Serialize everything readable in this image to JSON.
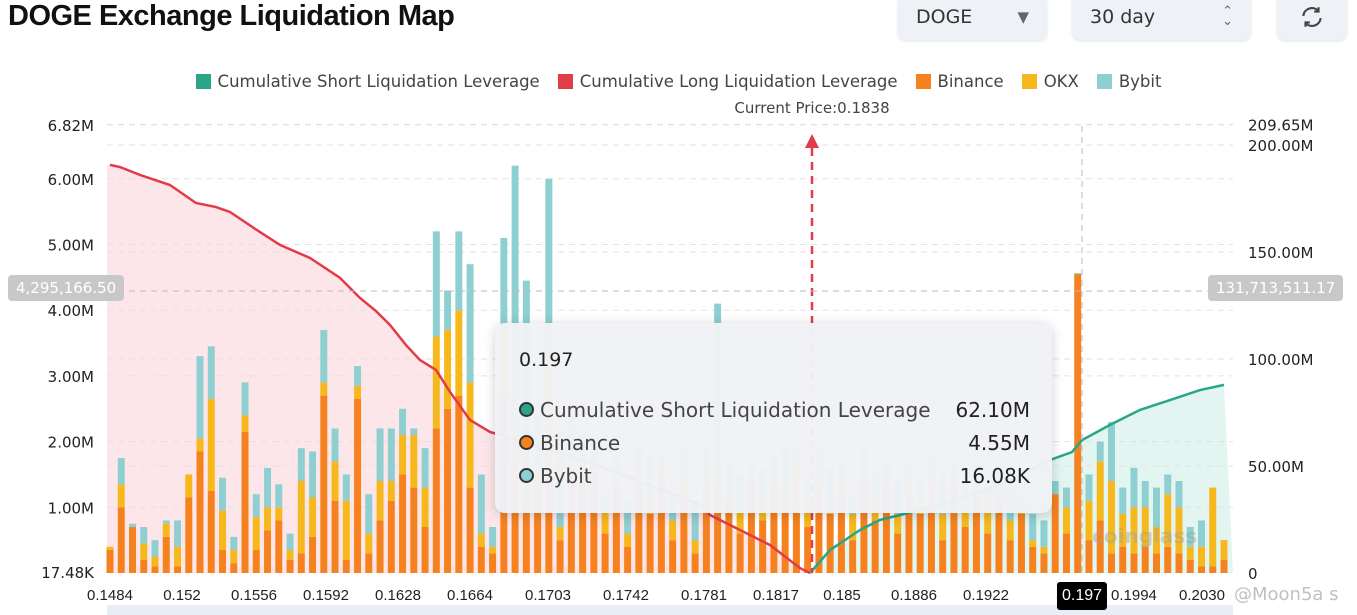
{
  "header": {
    "title": "DOGE Exchange Liquidation Map",
    "coin_select": "DOGE",
    "period_select": "30 day",
    "refresh_icon": "refresh-icon"
  },
  "colors": {
    "short": "#2aa58a",
    "long": "#e23b4a",
    "binance": "#f5821f",
    "okx": "#f7b81d",
    "bybit": "#8ecfd2"
  },
  "legend": [
    {
      "label": "Cumulative Short Liquidation Leverage",
      "color": "#2aa58a"
    },
    {
      "label": "Cumulative Long Liquidation Leverage",
      "color": "#e23b4a"
    },
    {
      "label": "Binance",
      "color": "#f5821f"
    },
    {
      "label": "OKX",
      "color": "#f7b81d"
    },
    {
      "label": "Bybit",
      "color": "#8ecfd2"
    }
  ],
  "current_price_label": "Current Price:0.1838",
  "crosshair": {
    "left_value": "4,295,166.50",
    "right_value": "131,713,511.17",
    "x_value": "0.197"
  },
  "tooltip": {
    "title": "0.197",
    "rows": [
      {
        "name": "Cumulative Short Liquidation Leverage",
        "value": "62.10M",
        "color": "#2aa58a"
      },
      {
        "name": "Binance",
        "value": "4.55M",
        "color": "#f5821f"
      },
      {
        "name": "Bybit",
        "value": "16.08K",
        "color": "#8ecfd2"
      }
    ]
  },
  "watermarks": {
    "logo": "coinglass",
    "credit": "@Moon5a s"
  },
  "chart_data": {
    "type": "bar",
    "stacked": true,
    "x_range": [
      0.1484,
      0.2041
    ],
    "current_price": 0.1838,
    "x_ticks": [
      "0.1484",
      "0.152",
      "0.1556",
      "0.1592",
      "0.1628",
      "0.1664",
      "0.1703",
      "0.1742",
      "0.1781",
      "0.1817",
      "0.185",
      "0.1886",
      "0.1922",
      "0.1994",
      "0.2030"
    ],
    "y_left": {
      "range": [
        0.01748,
        6.82
      ],
      "ticks": [
        {
          "v": 0.01748,
          "label": "17.48K"
        },
        {
          "v": 1,
          "label": "1.00M"
        },
        {
          "v": 2,
          "label": "2.00M"
        },
        {
          "v": 3,
          "label": "3.00M"
        },
        {
          "v": 4,
          "label": "4.00M"
        },
        {
          "v": 5,
          "label": "5.00M"
        },
        {
          "v": 6,
          "label": "6.00M"
        },
        {
          "v": 6.82,
          "label": "6.82M"
        }
      ],
      "unit": "M"
    },
    "y_right": {
      "range": [
        0,
        209.65
      ],
      "ticks": [
        {
          "v": 0,
          "label": "0"
        },
        {
          "v": 50,
          "label": "50.00M"
        },
        {
          "v": 100,
          "label": "100.00M"
        },
        {
          "v": 150,
          "label": "150.00M"
        },
        {
          "v": 200,
          "label": "200.00M"
        },
        {
          "v": 209.65,
          "label": "209.65M"
        }
      ],
      "unit": "M"
    },
    "grid": true,
    "series_order": [
      "Binance",
      "OKX",
      "Bybit"
    ],
    "bars": [
      [
        0.35,
        0.05,
        0
      ],
      [
        1.0,
        0.35,
        0.4
      ],
      [
        0.7,
        0,
        0.05
      ],
      [
        0.2,
        0.25,
        0.25
      ],
      [
        0.1,
        0.15,
        0.25
      ],
      [
        0.55,
        0.2,
        0.05
      ],
      [
        0.1,
        0.3,
        0.4
      ],
      [
        1.15,
        0.35,
        0
      ],
      [
        1.85,
        0.2,
        1.25
      ],
      [
        1.25,
        1.4,
        0.8
      ],
      [
        0.35,
        0.6,
        0.5
      ],
      [
        0.15,
        0.2,
        0.2
      ],
      [
        2.15,
        0.25,
        0.5
      ],
      [
        0.35,
        0.5,
        0.35
      ],
      [
        0.65,
        0.35,
        0.6
      ],
      [
        0.8,
        0.2,
        0.35
      ],
      [
        0.2,
        0.15,
        0.25
      ],
      [
        0.3,
        1.1,
        0.5
      ],
      [
        0.55,
        0.6,
        0.7
      ],
      [
        2.7,
        0.2,
        0.8
      ],
      [
        1.1,
        0.6,
        0.5
      ],
      [
        0.2,
        0.9,
        0.4
      ],
      [
        2.65,
        0.2,
        0.3
      ],
      [
        0.3,
        0.3,
        0.6
      ],
      [
        0.8,
        0.6,
        0.8
      ],
      [
        1.1,
        0.3,
        0.8
      ],
      [
        1.5,
        0.6,
        0.4
      ],
      [
        1.3,
        0.8,
        0.1
      ],
      [
        0.7,
        0.6,
        0.6
      ],
      [
        2.2,
        1.4,
        1.6
      ],
      [
        2.5,
        1.2,
        0.6
      ],
      [
        2.7,
        1.3,
        1.2
      ],
      [
        1.3,
        1.6,
        1.8
      ],
      [
        0.4,
        0.2,
        0.9
      ],
      [
        0.3,
        0.1,
        0.3
      ],
      [
        2.7,
        1.1,
        1.3
      ],
      [
        1.7,
        0.4,
        4.1
      ],
      [
        1.05,
        0.8,
        2.6
      ],
      [
        1.4,
        0.2,
        0.8
      ],
      [
        1.6,
        1.7,
        2.7
      ],
      [
        0.5,
        0.2,
        1.5
      ],
      [
        1.3,
        0.5,
        0.6
      ],
      [
        1.4,
        0.3,
        0.4
      ],
      [
        1.5,
        0.2,
        0.3
      ],
      [
        0.6,
        0.4,
        0.2
      ],
      [
        1.3,
        0.1,
        0.4
      ],
      [
        0.4,
        0.2,
        0.5
      ],
      [
        1.4,
        0.3,
        0.2
      ],
      [
        0.9,
        0.3,
        0.6
      ],
      [
        1.5,
        0.2,
        0.1
      ],
      [
        0.5,
        0.3,
        0.4
      ],
      [
        1.2,
        0.4,
        0.3
      ],
      [
        0.3,
        0.2,
        0.6
      ],
      [
        1.4,
        0.2,
        0.3
      ],
      [
        1.2,
        0.3,
        2.6
      ],
      [
        1.1,
        0.2,
        0.4
      ],
      [
        0.6,
        0.4,
        0.5
      ],
      [
        1.4,
        0.1,
        0.2
      ],
      [
        0.8,
        0.3,
        0.5
      ],
      [
        1.3,
        0.2,
        0.3
      ],
      [
        1.0,
        0.3,
        0.6
      ],
      [
        1.5,
        0.2,
        0.2
      ],
      [
        0.7,
        0.4,
        0.3
      ],
      [
        1.3,
        0.2,
        0.4
      ],
      [
        0.9,
        0.1,
        0.6
      ],
      [
        1.2,
        0.3,
        0.2
      ],
      [
        0.5,
        0.4,
        0.3
      ],
      [
        1.4,
        0.2,
        0.3
      ],
      [
        0.8,
        0.3,
        0.4
      ],
      [
        1.3,
        0.2,
        0.2
      ],
      [
        0.6,
        0.3,
        0.5
      ],
      [
        1.2,
        0.2,
        0.3
      ],
      [
        0.9,
        0.3,
        0.2
      ],
      [
        1.4,
        0.1,
        0.3
      ],
      [
        0.5,
        0.4,
        0.6
      ],
      [
        1.3,
        0.2,
        0.2
      ],
      [
        0.7,
        0.3,
        0.4
      ],
      [
        1.2,
        0.2,
        0.3
      ],
      [
        0.6,
        0.5,
        0.2
      ],
      [
        1.1,
        0.2,
        0.4
      ],
      [
        0.5,
        0.3,
        0.4
      ],
      [
        0.9,
        0.1,
        0.1
      ],
      [
        0.4,
        0.1,
        0.4
      ],
      [
        0.3,
        0.1,
        0.4
      ],
      [
        1.2,
        0,
        0.2
      ],
      [
        0.6,
        0.4,
        0.3
      ],
      [
        4.55,
        0,
        0.016
      ],
      [
        0.5,
        0.6,
        0.4
      ],
      [
        0.8,
        0.9,
        0.3
      ],
      [
        0.3,
        1.1,
        0.9
      ],
      [
        0.4,
        0.5,
        0.4
      ],
      [
        0.3,
        0.7,
        0.6
      ],
      [
        0.4,
        0.6,
        0.4
      ],
      [
        0.3,
        0.4,
        0.6
      ],
      [
        0.4,
        0.8,
        0.3
      ],
      [
        0.3,
        0.7,
        0.4
      ],
      [
        0.2,
        0.2,
        0.3
      ],
      [
        0.1,
        0.3,
        0.4
      ],
      [
        0.1,
        1.2,
        0
      ],
      [
        0.2,
        0.3,
        0
      ]
    ],
    "lines": [
      {
        "name": "Cumulative Long Liquidation Leverage",
        "axis": "right",
        "points": [
          [
            0.1484,
            190.7
          ],
          [
            0.1489,
            189.7
          ],
          [
            0.1499,
            186
          ],
          [
            0.1514,
            181.3
          ],
          [
            0.1527,
            172.9
          ],
          [
            0.1537,
            171
          ],
          [
            0.1544,
            168.7
          ],
          [
            0.1559,
            159.3
          ],
          [
            0.1569,
            153.3
          ],
          [
            0.1584,
            147.2
          ],
          [
            0.1599,
            137.9
          ],
          [
            0.1609,
            128.5
          ],
          [
            0.1617,
            122.4
          ],
          [
            0.1624,
            115.9
          ],
          [
            0.1632,
            106.5
          ],
          [
            0.1639,
            99.5
          ],
          [
            0.1647,
            94.9
          ],
          [
            0.1654,
            84.6
          ],
          [
            0.1664,
            71.5
          ],
          [
            0.1674,
            65.9
          ],
          [
            0.1679,
            64.5
          ],
          [
            0.1729,
            50
          ],
          [
            0.1779,
            32
          ],
          [
            0.1784,
            27.1
          ],
          [
            0.1799,
            20.1
          ],
          [
            0.1814,
            13.1
          ],
          [
            0.1829,
            2.3
          ],
          [
            0.1834,
            0
          ]
        ]
      },
      {
        "name": "Cumulative Short Liquidation Leverage",
        "axis": "right",
        "points": [
          [
            0.1834,
            0
          ],
          [
            0.1844,
            10.7
          ],
          [
            0.1859,
            20.1
          ],
          [
            0.1869,
            24.8
          ],
          [
            0.1879,
            27.1
          ],
          [
            0.1899,
            31.8
          ],
          [
            0.1929,
            41.1
          ],
          [
            0.1954,
            52.8
          ],
          [
            0.1965,
            56.5
          ],
          [
            0.197,
            62.1
          ],
          [
            0.1984,
            69.2
          ],
          [
            0.1999,
            76.2
          ],
          [
            0.2014,
            80.8
          ],
          [
            0.2029,
            85.5
          ],
          [
            0.2041,
            87.9
          ]
        ]
      }
    ]
  }
}
